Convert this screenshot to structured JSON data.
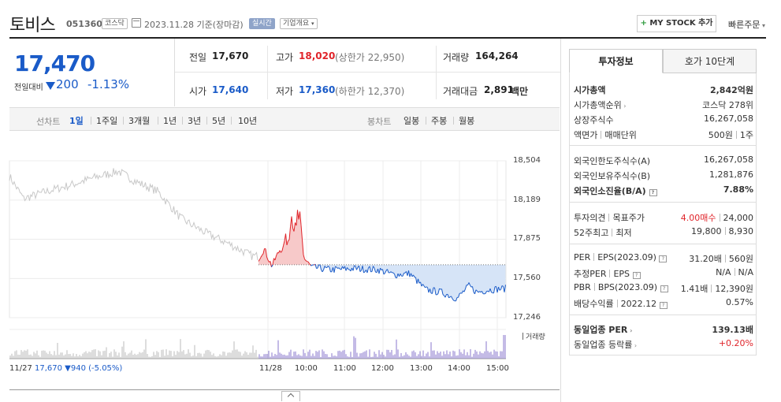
{
  "header": {
    "name": "토비스",
    "code": "051360",
    "market": "코스닥",
    "date": "2023.11.28  기준(장마감)",
    "realtime": "실시간",
    "company_overview": "기업개요",
    "mystock_plus": "+",
    "mystock_label": "MY STOCK 추가",
    "quick_order": "빠른주문"
  },
  "summary": {
    "price": "17,470",
    "prev_label": "전일대비",
    "change": "200",
    "change_pct": "-1.13%"
  },
  "quote": {
    "prev_close_label": "전일",
    "prev_close": "17,670",
    "high_label": "고가",
    "high": "18,020",
    "upper_limit": "(상한가 22,950)",
    "volume_label": "거래량",
    "volume": "164,264",
    "open_label": "시가",
    "open": "17,640",
    "low_label": "저가",
    "low": "17,360",
    "lower_limit": "(하한가 12,370)",
    "amount_label": "거래대금",
    "amount": "2,891",
    "amount_unit": "백만"
  },
  "periods": {
    "line_label": "선차트",
    "line_items": [
      "1일",
      "1주일",
      "3개월",
      "1년",
      "3년",
      "5년",
      "10년"
    ],
    "candle_label": "봉차트",
    "candle_items": [
      "일봉",
      "주봉",
      "월봉"
    ]
  },
  "chart_data": {
    "type": "line",
    "y_ticks": [
      "18,504",
      "18,189",
      "17,875",
      "17,560",
      "17,246"
    ],
    "x_ticks": [
      "11/28",
      "10:00",
      "11:00",
      "12:00",
      "13:00",
      "14:00",
      "15:00"
    ],
    "prev_day_label": "11/27",
    "prev_day_summary": "17,670 ▼940 (-5.05%)",
    "volume_label": "거래량",
    "baseline": 17670,
    "ylim": [
      17246,
      18504
    ],
    "colors": {
      "up": "#e0242a",
      "down": "#1a5bc8",
      "prev": "#c8c8c8",
      "fill_down": "#d6e4f7",
      "fill_up": "#f7c9c9"
    }
  },
  "tabs": {
    "invest": "투자정보",
    "orderbook": "호가 10단계"
  },
  "invest": {
    "mcap_label": "시가총액",
    "mcap": "2,842억원",
    "mcap_rank_label": "시가총액순위",
    "mcap_rank": "코스닥 278위",
    "shares_label": "상장주식수",
    "shares": "16,267,058",
    "par_label": "액면가",
    "unit_label": "매매단위",
    "par": "500원",
    "unit": "1주",
    "foreign_limit_label": "외국인한도주식수(A)",
    "foreign_limit": "16,267,058",
    "foreign_hold_label": "외국인보유주식수(B)",
    "foreign_hold": "1,281,876",
    "foreign_rate_label": "외국인소진율(B/A)",
    "foreign_rate": "7.88%",
    "opinion_label": "투자의견",
    "target_label": "목표주가",
    "opinion": "4.00매수",
    "target": "24,000",
    "w52_high_label": "52주최고",
    "w52_low_label": "최저",
    "w52_high": "19,800",
    "w52_low": "8,930",
    "per_label": "PER",
    "eps_label": "EPS(2023.09)",
    "per": "31.20배",
    "eps": "560원",
    "est_per_label": "추정PER",
    "est_eps_label": "EPS",
    "est_per": "N/A",
    "est_eps": "N/A",
    "pbr_label": "PBR",
    "bps_label": "BPS(2023.09)",
    "pbr": "1.41배",
    "bps": "12,390원",
    "div_label": "배당수익률",
    "div_date": "2022.12",
    "div": "0.57%",
    "industry_per_label": "동일업종 PER",
    "industry_per": "139.13배",
    "industry_chg_label": "동일업종 등락률",
    "industry_chg": "+0.20%"
  }
}
